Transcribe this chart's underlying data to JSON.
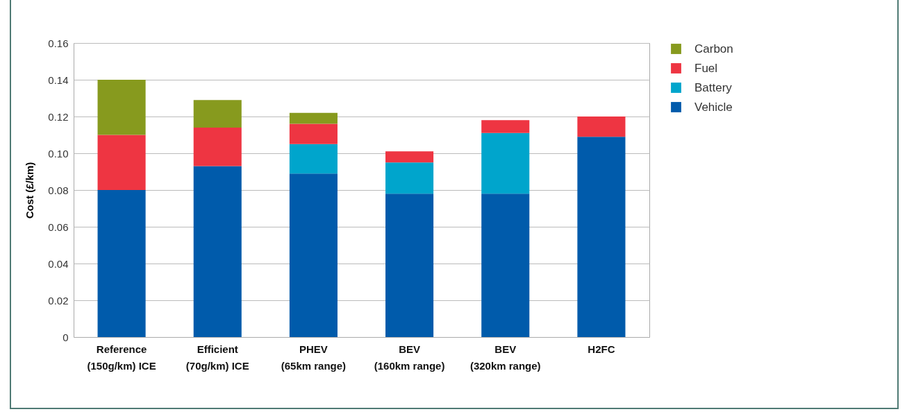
{
  "chart_data": {
    "type": "bar",
    "ylabel": "Cost (£/km)",
    "stacked": true,
    "legend": "top right",
    "grid": "y",
    "categories": [
      "Reference (150g/km) ICE",
      "Efficient (70g/km) ICE",
      "PHEV (65km range)",
      "BEV (160km range)",
      "BEV (320km range)",
      "H2FC"
    ],
    "series": [
      {
        "name": "Vehicle",
        "color": "#005bab",
        "values": [
          0.08,
          0.093,
          0.089,
          0.078,
          0.078,
          0.109
        ]
      },
      {
        "name": "Battery",
        "color": "#00a5cc",
        "values": [
          null,
          null,
          0.016,
          0.017,
          0.033,
          null
        ]
      },
      {
        "name": "Fuel",
        "color": "#ee3542",
        "values": [
          0.03,
          0.021,
          0.011,
          0.006,
          0.007,
          0.011
        ]
      },
      {
        "name": "Carbon",
        "color": "#879a1e",
        "values": [
          0.03,
          0.015,
          0.006,
          null,
          null,
          null
        ]
      }
    ],
    "ylim": [
      0,
      0.16
    ],
    "yticks": [
      0,
      0.02,
      0.04,
      0.06,
      0.08,
      {
        "value": 0.1,
        "label": "0.10"
      },
      0.12,
      0.14,
      0.16
    ]
  }
}
